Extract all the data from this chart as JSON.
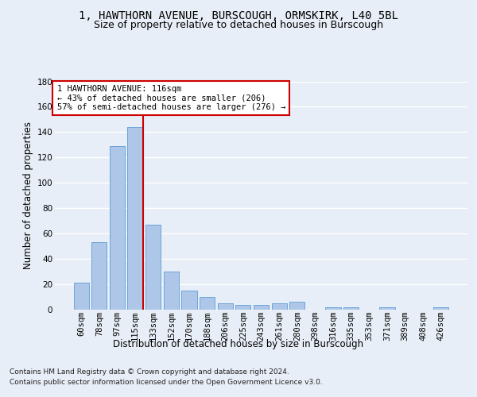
{
  "title1": "1, HAWTHORN AVENUE, BURSCOUGH, ORMSKIRK, L40 5BL",
  "title2": "Size of property relative to detached houses in Burscough",
  "xlabel": "Distribution of detached houses by size in Burscough",
  "ylabel": "Number of detached properties",
  "categories": [
    "60sqm",
    "78sqm",
    "97sqm",
    "115sqm",
    "133sqm",
    "152sqm",
    "170sqm",
    "188sqm",
    "206sqm",
    "225sqm",
    "243sqm",
    "261sqm",
    "280sqm",
    "298sqm",
    "316sqm",
    "335sqm",
    "353sqm",
    "371sqm",
    "389sqm",
    "408sqm",
    "426sqm"
  ],
  "values": [
    21,
    53,
    129,
    144,
    67,
    30,
    15,
    10,
    5,
    4,
    4,
    5,
    6,
    0,
    2,
    2,
    0,
    2,
    0,
    0,
    2
  ],
  "bar_color": "#aec6e8",
  "bar_edge_color": "#5b9bd5",
  "highlight_index": 3,
  "highlight_line_color": "#cc0000",
  "annotation_text": "1 HAWTHORN AVENUE: 116sqm\n← 43% of detached houses are smaller (206)\n57% of semi-detached houses are larger (276) →",
  "annotation_box_color": "#ffffff",
  "annotation_box_edge": "#cc0000",
  "footer1": "Contains HM Land Registry data © Crown copyright and database right 2024.",
  "footer2": "Contains public sector information licensed under the Open Government Licence v3.0.",
  "ylim": [
    0,
    180
  ],
  "background_color": "#e8eef7",
  "grid_color": "#ffffff",
  "title1_fontsize": 10,
  "title2_fontsize": 9,
  "axis_fontsize": 8.5,
  "tick_fontsize": 7.5,
  "footer_fontsize": 6.5
}
